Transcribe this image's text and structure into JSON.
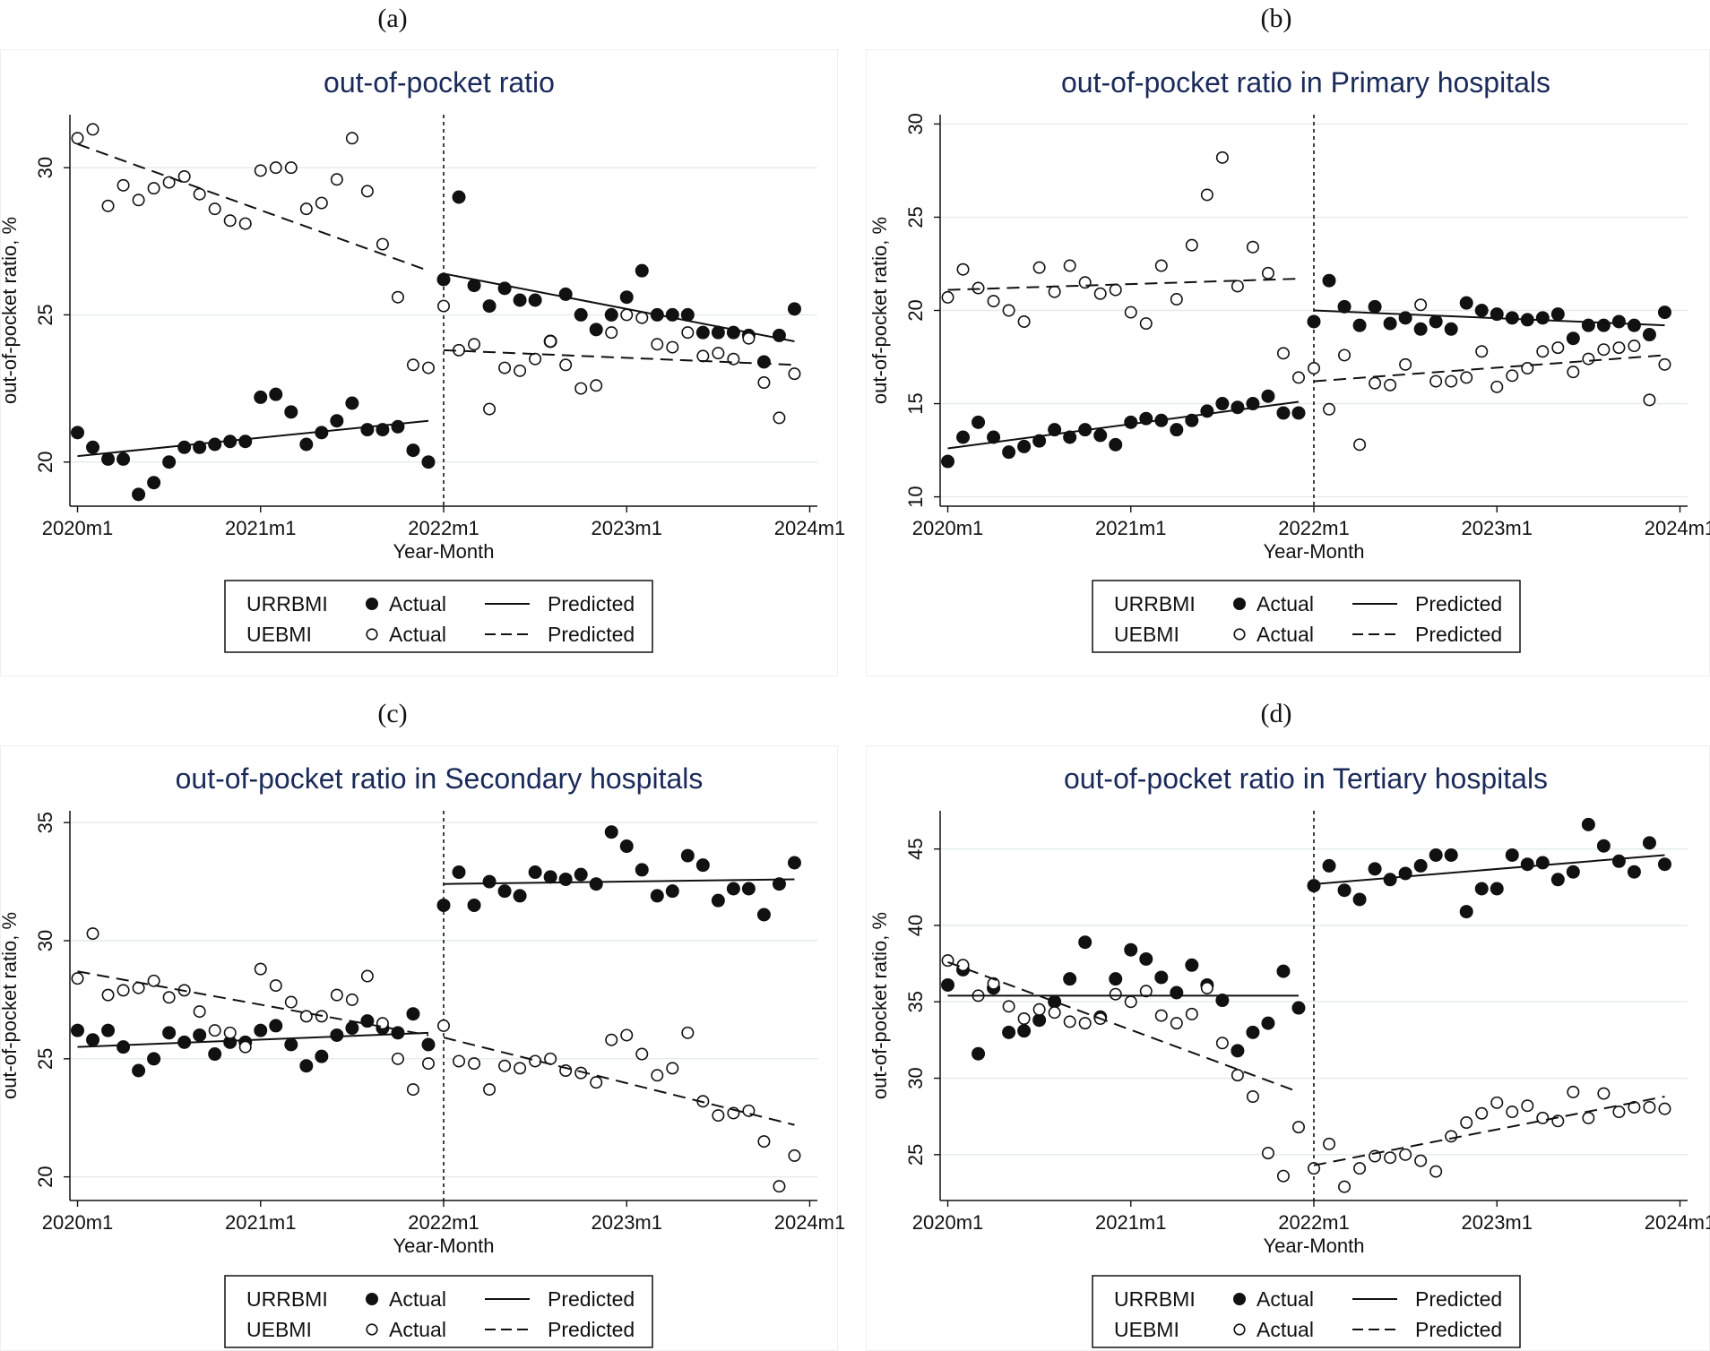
{
  "chart_data": [
    {
      "panel_label": "(a)",
      "type": "scatter",
      "title": "out-of-pocket ratio",
      "xlabel": "Year-Month",
      "ylabel": "out-of-pocket ratio,  %",
      "x_ticks": [
        "2020m1",
        "2021m1",
        "2022m1",
        "2023m1",
        "2024m1"
      ],
      "y_ticks": [
        20,
        25,
        30
      ],
      "ylim": [
        18.5,
        31.8
      ],
      "break_month": 24,
      "grid": true,
      "legend_position": "bottom",
      "legend": {
        "rows": [
          {
            "group": "URRBMI",
            "marker": "Actual",
            "line": "Predicted"
          },
          {
            "group": "UEBMI",
            "marker": "Actual",
            "line": "Predicted"
          }
        ]
      },
      "series": [
        {
          "name": "URRBMI Actual",
          "style": "filled",
          "values": [
            21.0,
            20.5,
            20.1,
            20.1,
            18.9,
            19.3,
            20.0,
            20.5,
            20.5,
            20.6,
            20.7,
            20.7,
            22.2,
            22.3,
            21.7,
            20.6,
            21.0,
            21.4,
            22.0,
            21.1,
            21.1,
            21.2,
            20.4,
            20.0,
            26.2,
            29.0,
            26.0,
            25.3,
            25.9,
            25.5,
            25.5,
            24.1,
            25.7,
            25.0,
            24.5,
            25.0,
            25.6,
            26.5,
            25.0,
            25.0,
            25.0,
            24.4,
            24.4,
            24.4,
            24.3,
            23.4,
            24.3,
            25.2
          ]
        },
        {
          "name": "UEBMI Actual",
          "style": "hollow",
          "values": [
            31.0,
            31.3,
            28.7,
            29.4,
            28.9,
            29.3,
            29.5,
            29.7,
            29.1,
            28.6,
            28.2,
            28.1,
            29.9,
            30.0,
            30.0,
            28.6,
            28.8,
            29.6,
            31.0,
            29.2,
            27.4,
            25.6,
            23.3,
            23.2,
            25.3,
            23.8,
            24.0,
            21.8,
            23.2,
            23.1,
            23.5,
            24.1,
            23.3,
            22.5,
            22.6,
            24.4,
            25.0,
            24.9,
            24.0,
            23.9,
            24.4,
            23.6,
            23.7,
            23.5,
            24.2,
            22.7,
            21.5,
            23.0
          ]
        },
        {
          "name": "URRBMI Predicted",
          "style": "solid",
          "segments": [
            {
              "x": [
                0,
                23
              ],
              "y": [
                20.2,
                21.4
              ]
            },
            {
              "x": [
                24,
                47
              ],
              "y": [
                26.4,
                24.1
              ]
            }
          ]
        },
        {
          "name": "UEBMI Predicted",
          "style": "dashed",
          "segments": [
            {
              "x": [
                0,
                23
              ],
              "y": [
                30.8,
                26.5
              ]
            },
            {
              "x": [
                24,
                47
              ],
              "y": [
                23.8,
                23.3
              ]
            }
          ]
        }
      ]
    },
    {
      "panel_label": "(b)",
      "type": "scatter",
      "title": "out-of-pocket ratio in Primary hospitals",
      "xlabel": "Year-Month",
      "ylabel": "out-of-pocket ratio,  %",
      "x_ticks": [
        "2020m1",
        "2021m1",
        "2022m1",
        "2023m1",
        "2024m1"
      ],
      "y_ticks": [
        10,
        15,
        20,
        25,
        30
      ],
      "ylim": [
        9.5,
        30.5
      ],
      "break_month": 24,
      "grid": true,
      "legend_position": "bottom",
      "legend": {
        "rows": [
          {
            "group": "URRBMI",
            "marker": "Actual",
            "line": "Predicted"
          },
          {
            "group": "UEBMI",
            "marker": "Actual",
            "line": "Predicted"
          }
        ]
      },
      "series": [
        {
          "name": "URRBMI Actual",
          "style": "filled",
          "values": [
            11.9,
            13.2,
            14.0,
            13.2,
            12.4,
            12.7,
            13.0,
            13.6,
            13.2,
            13.6,
            13.3,
            12.8,
            14.0,
            14.2,
            14.1,
            13.6,
            14.1,
            14.6,
            15.0,
            14.8,
            15.0,
            15.4,
            14.5,
            14.5,
            19.4,
            21.6,
            20.2,
            19.2,
            20.2,
            19.3,
            19.6,
            19.0,
            19.4,
            19.0,
            20.4,
            20.0,
            19.8,
            19.6,
            19.5,
            19.6,
            19.8,
            18.5,
            19.2,
            19.2,
            19.4,
            19.2,
            18.7,
            19.9
          ]
        },
        {
          "name": "UEBMI Actual",
          "style": "hollow",
          "values": [
            20.7,
            22.2,
            21.2,
            20.5,
            20.0,
            19.4,
            22.3,
            21.0,
            22.4,
            21.5,
            20.9,
            21.1,
            19.9,
            19.3,
            22.4,
            20.6,
            23.5,
            26.2,
            28.2,
            21.3,
            23.4,
            22.0,
            17.7,
            16.4,
            16.9,
            14.7,
            17.6,
            12.8,
            16.1,
            16.0,
            17.1,
            20.3,
            16.2,
            16.2,
            16.4,
            17.8,
            15.9,
            16.5,
            16.9,
            17.8,
            18.0,
            16.7,
            17.4,
            17.9,
            18.0,
            18.1,
            15.2,
            17.1
          ]
        },
        {
          "name": "URRBMI Predicted",
          "style": "solid",
          "segments": [
            {
              "x": [
                0,
                23
              ],
              "y": [
                12.6,
                15.1
              ]
            },
            {
              "x": [
                24,
                47
              ],
              "y": [
                20.0,
                19.2
              ]
            }
          ]
        },
        {
          "name": "UEBMI Predicted",
          "style": "dashed",
          "segments": [
            {
              "x": [
                0,
                23
              ],
              "y": [
                21.1,
                21.7
              ]
            },
            {
              "x": [
                24,
                47
              ],
              "y": [
                16.2,
                17.6
              ]
            }
          ]
        }
      ]
    },
    {
      "panel_label": "(c)",
      "type": "scatter",
      "title": "out-of-pocket ratio in  Secondary hospitals",
      "xlabel": "Year-Month",
      "ylabel": "out-of-pocket ratio,  %",
      "x_ticks": [
        "2020m1",
        "2021m1",
        "2022m1",
        "2023m1",
        "2024m1"
      ],
      "y_ticks": [
        20,
        25,
        30,
        35
      ],
      "ylim": [
        19.0,
        35.5
      ],
      "break_month": 24,
      "grid": true,
      "legend_position": "bottom",
      "legend": {
        "rows": [
          {
            "group": "URRBMI",
            "marker": "Actual",
            "line": "Predicted"
          },
          {
            "group": "UEBMI",
            "marker": "Actual",
            "line": "Predicted"
          }
        ]
      },
      "series": [
        {
          "name": "URRBMI Actual",
          "style": "filled",
          "values": [
            26.2,
            25.8,
            26.2,
            25.5,
            24.5,
            25.0,
            26.1,
            25.7,
            26.0,
            25.2,
            25.7,
            25.7,
            26.2,
            26.4,
            25.6,
            24.7,
            25.1,
            26.0,
            26.3,
            26.6,
            26.3,
            26.1,
            26.9,
            25.6,
            31.5,
            32.9,
            31.5,
            32.5,
            32.1,
            31.9,
            32.9,
            32.7,
            32.6,
            32.8,
            32.4,
            34.6,
            34.0,
            33.0,
            31.9,
            32.1,
            33.6,
            33.2,
            31.7,
            32.2,
            32.2,
            31.1,
            32.4,
            33.3
          ]
        },
        {
          "name": "UEBMI Actual",
          "style": "hollow",
          "values": [
            28.4,
            30.3,
            27.7,
            27.9,
            28.0,
            28.3,
            27.6,
            27.9,
            27.0,
            26.2,
            26.1,
            25.5,
            28.8,
            28.1,
            27.4,
            26.8,
            26.8,
            27.7,
            27.5,
            28.5,
            26.5,
            25.0,
            23.7,
            24.8,
            26.4,
            24.9,
            24.8,
            23.7,
            24.7,
            24.6,
            24.9,
            25.0,
            24.5,
            24.4,
            24.0,
            25.8,
            26.0,
            25.2,
            24.3,
            24.6,
            26.1,
            23.2,
            22.6,
            22.7,
            22.8,
            21.5,
            19.6,
            20.9
          ]
        },
        {
          "name": "URRBMI Predicted",
          "style": "solid",
          "segments": [
            {
              "x": [
                0,
                23
              ],
              "y": [
                25.5,
                26.1
              ]
            },
            {
              "x": [
                24,
                47
              ],
              "y": [
                32.4,
                32.6
              ]
            }
          ]
        },
        {
          "name": "UEBMI Predicted",
          "style": "dashed",
          "segments": [
            {
              "x": [
                0,
                23
              ],
              "y": [
                28.7,
                26.0
              ]
            },
            {
              "x": [
                24,
                47
              ],
              "y": [
                25.9,
                22.2
              ]
            }
          ]
        }
      ]
    },
    {
      "panel_label": "(d)",
      "type": "scatter",
      "title": "out-of-pocket ratio in Tertiary hospitals",
      "xlabel": "Year-Month",
      "ylabel": "out-of-pocket ratio,  %",
      "x_ticks": [
        "2020m1",
        "2021m1",
        "2022m1",
        "2023m1",
        "2024m1"
      ],
      "y_ticks": [
        25,
        30,
        35,
        40,
        45
      ],
      "ylim": [
        22.0,
        47.5
      ],
      "break_month": 24,
      "grid": true,
      "legend_position": "bottom",
      "legend": {
        "rows": [
          {
            "group": "URRBMI",
            "marker": "Actual",
            "line": "Predicted"
          },
          {
            "group": "UEBMI",
            "marker": "Actual",
            "line": "Predicted"
          }
        ]
      },
      "series": [
        {
          "name": "URRBMI Actual",
          "style": "filled",
          "values": [
            36.1,
            37.1,
            31.6,
            35.9,
            33.0,
            33.1,
            33.8,
            35.0,
            36.5,
            38.9,
            34.0,
            36.5,
            38.4,
            37.8,
            36.6,
            35.6,
            37.4,
            36.1,
            35.1,
            31.8,
            33.0,
            33.6,
            37.0,
            34.6,
            42.6,
            43.9,
            42.3,
            41.7,
            43.7,
            43.0,
            43.4,
            43.9,
            44.6,
            44.6,
            40.9,
            42.4,
            42.4,
            44.6,
            44.0,
            44.1,
            43.0,
            43.5,
            46.6,
            45.2,
            44.2,
            43.5,
            45.4,
            44.0
          ]
        },
        {
          "name": "UEBMI Actual",
          "style": "hollow",
          "values": [
            37.7,
            37.4,
            35.4,
            36.2,
            34.7,
            33.9,
            34.5,
            34.3,
            33.7,
            33.6,
            33.9,
            35.5,
            35.0,
            35.7,
            34.1,
            33.6,
            34.2,
            35.9,
            32.3,
            30.2,
            28.8,
            25.1,
            23.6,
            26.8,
            24.1,
            25.7,
            22.9,
            24.1,
            24.9,
            24.8,
            25.0,
            24.6,
            23.9,
            26.2,
            27.1,
            27.7,
            28.4,
            27.8,
            28.2,
            27.4,
            27.2,
            29.1,
            27.4,
            29.0,
            27.8,
            28.1,
            28.1,
            28.0
          ]
        },
        {
          "name": "URRBMI Predicted",
          "style": "solid",
          "segments": [
            {
              "x": [
                0,
                23
              ],
              "y": [
                35.4,
                35.4
              ]
            },
            {
              "x": [
                24,
                47
              ],
              "y": [
                42.7,
                44.6
              ]
            }
          ]
        },
        {
          "name": "UEBMI Predicted",
          "style": "dashed",
          "segments": [
            {
              "x": [
                0,
                23
              ],
              "y": [
                37.6,
                29.1
              ]
            },
            {
              "x": [
                24,
                47
              ],
              "y": [
                24.3,
                28.8
              ]
            }
          ]
        }
      ]
    }
  ]
}
